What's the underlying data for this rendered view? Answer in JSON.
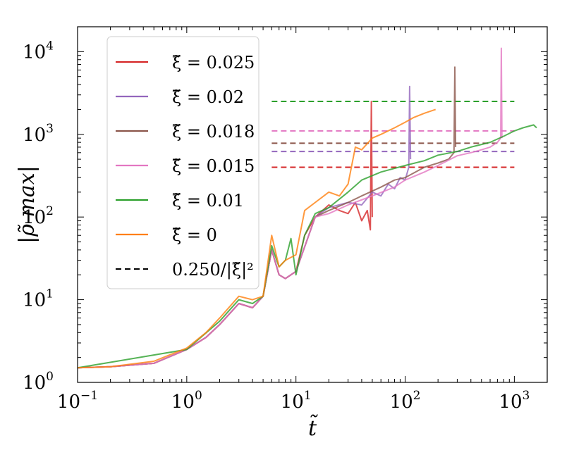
{
  "chart_data": {
    "type": "line",
    "xlabel": "t̃",
    "ylabel": "|ρ̃ max|",
    "xscale": "log",
    "yscale": "log",
    "xlim": [
      0.1,
      2000
    ],
    "ylim": [
      1,
      20000
    ],
    "x_ticks": [
      {
        "value": 0.1,
        "label": "10",
        "exp": "−1"
      },
      {
        "value": 1,
        "label": "10",
        "exp": "0"
      },
      {
        "value": 10,
        "label": "10",
        "exp": "1"
      },
      {
        "value": 100,
        "label": "10",
        "exp": "2"
      },
      {
        "value": 1000,
        "label": "10",
        "exp": "3"
      }
    ],
    "y_ticks": [
      {
        "value": 1,
        "label": "10",
        "exp": "0"
      },
      {
        "value": 10,
        "label": "10",
        "exp": "1"
      },
      {
        "value": 100,
        "label": "10",
        "exp": "2"
      },
      {
        "value": 1000,
        "label": "10",
        "exp": "3"
      },
      {
        "value": 10000,
        "label": "10",
        "exp": "4"
      }
    ],
    "grid": false,
    "legend_position": "top-left",
    "series": [
      {
        "name": "ξ̃ = 0.025",
        "color": "#d62728",
        "x": [
          0.1,
          0.2,
          0.5,
          1,
          1.5,
          2,
          3,
          4,
          5,
          6,
          7,
          8,
          10,
          12,
          15,
          20,
          25,
          30,
          35,
          40,
          45,
          48,
          49,
          50
        ],
        "y": [
          1.5,
          1.55,
          1.7,
          2.5,
          3.5,
          5,
          9,
          8,
          11,
          40,
          20,
          18,
          22,
          60,
          100,
          140,
          120,
          110,
          150,
          90,
          120,
          70,
          2500,
          100
        ],
        "hline": {
          "y": 400,
          "x_start": 6,
          "x_end": 1000
        }
      },
      {
        "name": "ξ̃ = 0.02",
        "color": "#9467bd",
        "x": [
          0.1,
          0.2,
          0.5,
          1,
          1.5,
          2,
          3,
          4,
          5,
          6,
          7,
          8,
          10,
          15,
          20,
          30,
          40,
          50,
          60,
          70,
          80,
          90,
          100,
          108,
          110,
          112
        ],
        "y": [
          1.5,
          1.55,
          1.7,
          2.5,
          3.5,
          5,
          9,
          8,
          11,
          40,
          20,
          18,
          22,
          100,
          130,
          150,
          140,
          200,
          180,
          250,
          220,
          300,
          280,
          400,
          3800,
          500
        ],
        "hline": {
          "y": 620,
          "x_start": 6,
          "x_end": 1000
        }
      },
      {
        "name": "ξ̃ = 0.018",
        "color": "#8c564b",
        "x": [
          0.1,
          0.2,
          0.5,
          1,
          1.5,
          2,
          3,
          4,
          5,
          6,
          7,
          8,
          10,
          15,
          20,
          30,
          40,
          60,
          80,
          100,
          150,
          200,
          250,
          280,
          285,
          290
        ],
        "y": [
          1.5,
          1.55,
          1.7,
          2.5,
          3.5,
          5,
          9,
          8,
          11,
          40,
          20,
          18,
          22,
          100,
          120,
          150,
          180,
          230,
          280,
          300,
          400,
          450,
          500,
          600,
          6500,
          700
        ],
        "hline": {
          "y": 780,
          "x_start": 6,
          "x_end": 1000
        }
      },
      {
        "name": "ξ̃ = 0.015",
        "color": "#e377c2",
        "x": [
          0.1,
          0.2,
          0.5,
          1,
          1.5,
          2,
          3,
          4,
          5,
          6,
          7,
          8,
          10,
          15,
          20,
          30,
          50,
          80,
          100,
          150,
          200,
          300,
          400,
          500,
          600,
          700,
          750,
          760,
          770
        ],
        "y": [
          1.5,
          1.55,
          1.7,
          2.5,
          3.5,
          5,
          9,
          8,
          11,
          40,
          20,
          18,
          22,
          100,
          110,
          140,
          180,
          230,
          280,
          350,
          420,
          550,
          600,
          650,
          700,
          800,
          900,
          11000,
          900
        ],
        "hline": {
          "y": 1100,
          "x_start": 6,
          "x_end": 1000
        }
      },
      {
        "name": "ξ̃ = 0.01",
        "color": "#2ca02c",
        "x": [
          0.1,
          1,
          2,
          3,
          4,
          5,
          6,
          7,
          8,
          9,
          10,
          12,
          15,
          20,
          30,
          40,
          60,
          100,
          150,
          200,
          300,
          400,
          600,
          800,
          1000,
          1200,
          1500,
          1600
        ],
        "y": [
          1.5,
          2.5,
          5.5,
          10,
          9,
          11,
          45,
          25,
          30,
          55,
          20,
          60,
          110,
          130,
          200,
          280,
          350,
          420,
          480,
          560,
          620,
          700,
          800,
          950,
          1100,
          1200,
          1300,
          1200
        ],
        "hline": {
          "y": 2500,
          "x_start": 6,
          "x_end": 1000
        }
      },
      {
        "name": "ξ̃ = 0",
        "color": "#ff7f0e",
        "x": [
          0.1,
          0.2,
          0.5,
          1,
          1.5,
          2,
          3,
          4,
          5,
          6,
          7,
          8,
          10,
          12,
          15,
          20,
          25,
          30,
          35,
          40,
          50,
          60,
          80,
          100,
          120,
          150,
          190
        ],
        "y": [
          1.5,
          1.55,
          1.8,
          2.6,
          4,
          6,
          11,
          10,
          11,
          60,
          25,
          30,
          35,
          120,
          150,
          200,
          180,
          250,
          700,
          650,
          900,
          1000,
          1200,
          1400,
          1600,
          1800,
          2000
        ]
      }
    ],
    "reference_legend_label": "0.250/|ξ̃|²"
  }
}
